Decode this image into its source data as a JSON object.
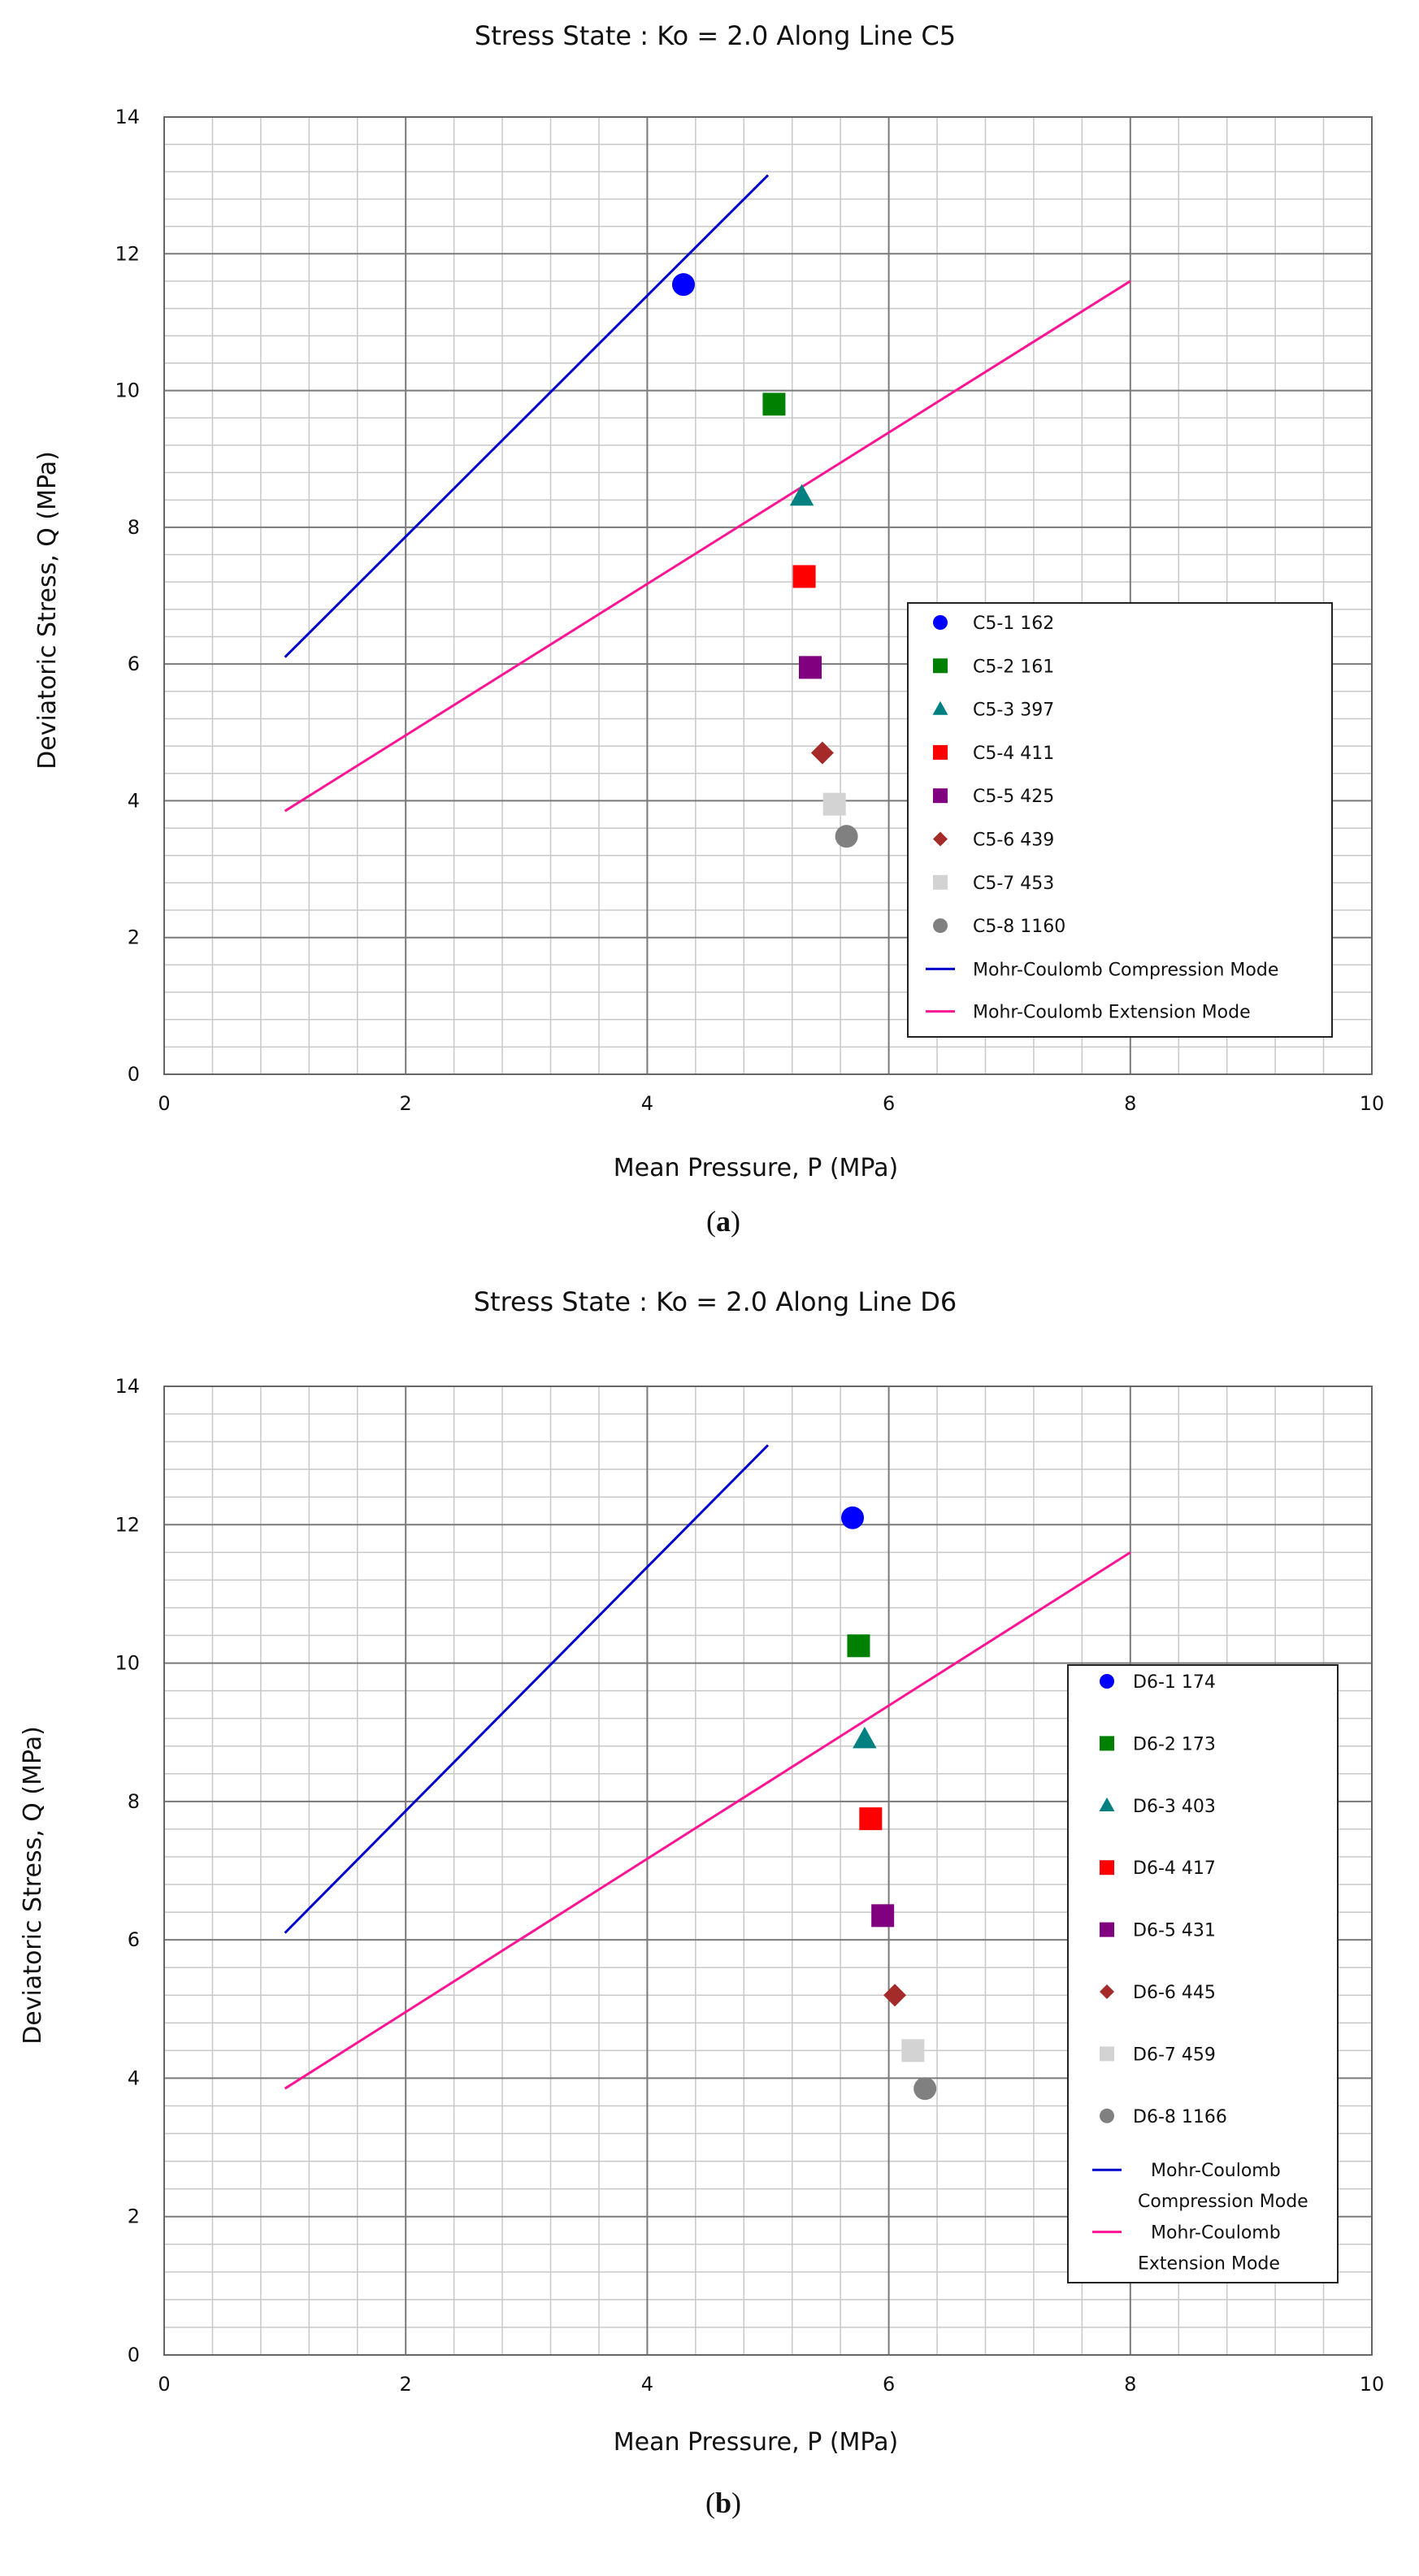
{
  "chart_data": [
    {
      "type": "scatter",
      "title": "Stress State : Ko = 2.0   Along Line C5",
      "caption": "(a)",
      "caption_letter": "a",
      "xlabel": "Mean Pressure,   P (MPa)",
      "ylabel": "Deviatoric Stress,   Q (MPa)",
      "xlim": [
        0,
        10
      ],
      "ylim": [
        0,
        14
      ],
      "xticks": [
        0,
        2,
        4,
        6,
        8,
        10
      ],
      "yticks": [
        0,
        2,
        4,
        6,
        8,
        10,
        12,
        14
      ],
      "grid": true,
      "legend_position": "lower-right",
      "series": [
        {
          "name": "C5-1 162",
          "marker": "circle",
          "color": "#0000ff",
          "x": 4.3,
          "y": 11.55
        },
        {
          "name": "C5-2 161",
          "marker": "square",
          "color": "#008000",
          "x": 5.05,
          "y": 9.8
        },
        {
          "name": "C5-3 397",
          "marker": "triangle",
          "color": "#008080",
          "x": 5.28,
          "y": 8.45
        },
        {
          "name": "C5-4 411",
          "marker": "square",
          "color": "#ff0000",
          "x": 5.3,
          "y": 7.28
        },
        {
          "name": "C5-5 425",
          "marker": "square",
          "color": "#800080",
          "x": 5.35,
          "y": 5.95
        },
        {
          "name": "C5-6 439",
          "marker": "diamond",
          "color": "#a52a2a",
          "x": 5.45,
          "y": 4.7
        },
        {
          "name": "C5-7 453",
          "marker": "square",
          "color": "#d3d3d3",
          "x": 5.55,
          "y": 3.95
        },
        {
          "name": "C5-8 1160",
          "marker": "circle",
          "color": "#808080",
          "x": 5.65,
          "y": 3.48
        }
      ],
      "lines": [
        {
          "name": "Mohr-Coulomb  Compression Mode",
          "legend_lines": [
            "Mohr-Coulomb  Compression Mode"
          ],
          "color": "#0000cd",
          "x": [
            1.0,
            5.0
          ],
          "y": [
            6.1,
            13.15
          ]
        },
        {
          "name": "Mohr-Coulomb  Extension Mode",
          "legend_lines": [
            "Mohr-Coulomb  Extension Mode"
          ],
          "color": "#ff1493",
          "x": [
            1.0,
            8.0
          ],
          "y": [
            3.85,
            11.6
          ]
        }
      ]
    },
    {
      "type": "scatter",
      "title": "Stress State : Ko = 2.0   Along Line D6",
      "caption": "(b)",
      "caption_letter": "b",
      "xlabel": "Mean Pressure,   P (MPa)",
      "ylabel": "Deviatoric Stress,   Q (MPa)",
      "xlim": [
        0,
        10
      ],
      "ylim": [
        0,
        14
      ],
      "xticks": [
        0,
        2,
        4,
        6,
        8,
        10
      ],
      "yticks": [
        0,
        2,
        4,
        6,
        8,
        10,
        12,
        14
      ],
      "grid": true,
      "legend_position": "right",
      "series": [
        {
          "name": "D6-1 174",
          "marker": "circle",
          "color": "#0000ff",
          "x": 5.7,
          "y": 12.1
        },
        {
          "name": "D6-2 173",
          "marker": "square",
          "color": "#008000",
          "x": 5.75,
          "y": 10.25
        },
        {
          "name": "D6-3 403",
          "marker": "triangle",
          "color": "#008080",
          "x": 5.8,
          "y": 8.9
        },
        {
          "name": "D6-4 417",
          "marker": "square",
          "color": "#ff0000",
          "x": 5.85,
          "y": 7.75
        },
        {
          "name": "D6-5 431",
          "marker": "square",
          "color": "#800080",
          "x": 5.95,
          "y": 6.35
        },
        {
          "name": "D6-6 445",
          "marker": "diamond",
          "color": "#a52a2a",
          "x": 6.05,
          "y": 5.2
        },
        {
          "name": "D6-7 459",
          "marker": "square",
          "color": "#d3d3d3",
          "x": 6.2,
          "y": 4.4
        },
        {
          "name": "D6-8 1166",
          "marker": "circle",
          "color": "#808080",
          "x": 6.3,
          "y": 3.85
        }
      ],
      "lines": [
        {
          "name": "Mohr-Coulomb Compression Mode",
          "legend_lines": [
            "Mohr-Coulomb",
            "Compression Mode"
          ],
          "color": "#0000cd",
          "x": [
            1.0,
            5.0
          ],
          "y": [
            6.1,
            13.15
          ]
        },
        {
          "name": "Mohr-Coulomb Extension Mode",
          "legend_lines": [
            "Mohr-Coulomb",
            "Extension Mode"
          ],
          "color": "#ff1493",
          "x": [
            1.0,
            8.0
          ],
          "y": [
            3.85,
            11.6
          ]
        }
      ]
    }
  ]
}
